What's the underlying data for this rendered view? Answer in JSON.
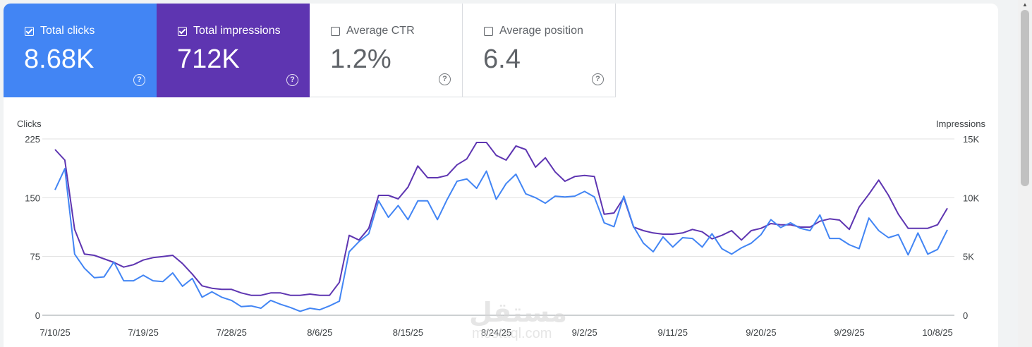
{
  "metrics": [
    {
      "label": "Total clicks",
      "value": "8.68K",
      "checked": true,
      "color": "#4285f4"
    },
    {
      "label": "Total impressions",
      "value": "712K",
      "checked": true,
      "color": "#5e35b1"
    },
    {
      "label": "Average CTR",
      "value": "1.2%",
      "checked": false
    },
    {
      "label": "Average position",
      "value": "6.4",
      "checked": false
    }
  ],
  "help_glyph": "?",
  "watermark": {
    "arabic": "مستقل",
    "latin": "mostaql.com"
  },
  "chart_data": {
    "type": "line",
    "left_axis_label": "Clicks",
    "right_axis_label": "Impressions",
    "left_ticks": [
      "225",
      "150",
      "75",
      "0"
    ],
    "right_ticks": [
      "15K",
      "10K",
      "5K",
      "0"
    ],
    "ylim_left": [
      0,
      225
    ],
    "ylim_right": [
      0,
      15000
    ],
    "x_tick_labels": [
      "7/10/25",
      "7/19/25",
      "7/28/25",
      "8/6/25",
      "8/15/25",
      "8/24/25",
      "9/2/25",
      "9/11/25",
      "9/20/25",
      "9/29/25",
      "10/8/25"
    ],
    "grid": true,
    "series": [
      {
        "name": "Clicks",
        "axis": "left",
        "color": "#4285f4",
        "values": [
          160,
          187,
          78,
          60,
          48,
          49,
          68,
          44,
          44,
          51,
          44,
          43,
          54,
          37,
          47,
          23,
          30,
          23,
          19,
          11,
          12,
          9,
          19,
          14,
          10,
          5,
          9,
          7,
          12,
          18,
          81,
          94,
          104,
          146,
          125,
          140,
          122,
          146,
          146,
          122,
          148,
          171,
          174,
          162,
          184,
          148,
          168,
          180,
          155,
          150,
          143,
          152,
          151,
          152,
          158,
          151,
          118,
          113,
          152,
          113,
          92,
          81,
          100,
          87,
          99,
          98,
          87,
          104,
          85,
          78,
          86,
          92,
          103,
          122,
          112,
          118,
          111,
          108,
          128,
          98,
          98,
          90,
          85,
          124,
          108,
          99,
          103,
          77,
          105,
          78,
          84,
          109
        ]
      },
      {
        "name": "Impressions",
        "axis": "right",
        "color": "#5e35b1",
        "values": [
          14100,
          13200,
          7300,
          5200,
          5100,
          4800,
          4500,
          4100,
          4300,
          4700,
          4900,
          5000,
          5100,
          4400,
          3500,
          2500,
          2300,
          2200,
          2200,
          1900,
          1700,
          1700,
          1900,
          1900,
          1700,
          1700,
          1800,
          1700,
          1700,
          2800,
          6800,
          6400,
          7400,
          10200,
          10200,
          9900,
          10900,
          12700,
          11700,
          11700,
          11900,
          12800,
          13300,
          14700,
          14700,
          13600,
          13200,
          14400,
          14100,
          12600,
          13400,
          12200,
          11400,
          11800,
          11900,
          11800,
          8600,
          8700,
          10000,
          7500,
          7200,
          7000,
          6900,
          6900,
          7000,
          7300,
          7100,
          6500,
          6800,
          7200,
          6400,
          7200,
          7400,
          7800,
          7700,
          7700,
          7500,
          7500,
          8000,
          8200,
          8100,
          7300,
          9200,
          10300,
          11500,
          10200,
          8600,
          7400,
          7400,
          7400,
          7700,
          9100
        ]
      }
    ]
  }
}
